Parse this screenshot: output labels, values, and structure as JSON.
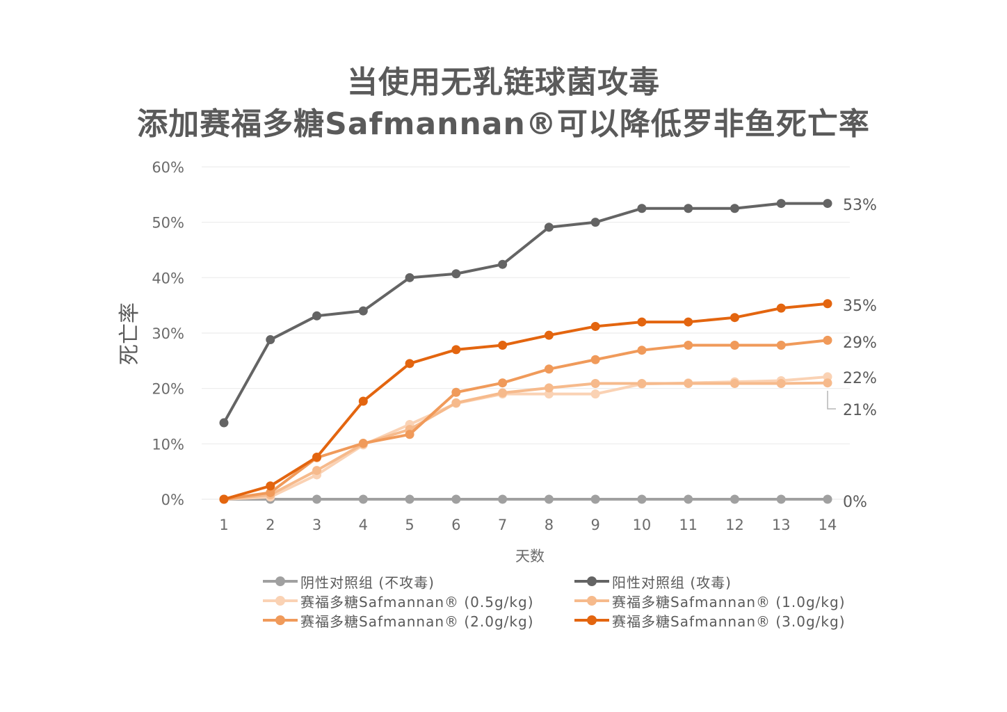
{
  "title_line1": "当使用无乳链球菌攻毒",
  "title_line2": "添加赛福多糖Safmannan®可以降低罗非鱼死亡率",
  "chart_data": {
    "type": "line",
    "xlabel": "天数",
    "ylabel": "死亡率",
    "x": [
      1,
      2,
      3,
      4,
      5,
      6,
      7,
      8,
      9,
      10,
      11,
      12,
      13,
      14
    ],
    "x_tick_labels": [
      "1",
      "2",
      "3",
      "4",
      "5",
      "6",
      "7",
      "8",
      "9",
      "10",
      "11",
      "12",
      "13",
      "14"
    ],
    "y_tick_labels": [
      "0%",
      "10%",
      "20%",
      "30%",
      "40%",
      "50%",
      "60%"
    ],
    "ylim": [
      0,
      60
    ],
    "grid": "horizontal",
    "legend_position": "bottom",
    "end_labels": [
      "53%",
      "35%",
      "29%",
      "22%",
      "21%",
      "0%"
    ],
    "series": [
      {
        "name": "阴性对照组 (不攻毒)",
        "color": "#a0a0a0",
        "values": [
          0,
          0,
          0,
          0,
          0,
          0,
          0,
          0,
          0,
          0,
          0,
          0,
          0,
          0
        ]
      },
      {
        "name": "阳性对照组 (攻毒)",
        "color": "#646464",
        "values": [
          13.8,
          28.8,
          33.1,
          34.0,
          40.0,
          40.7,
          42.4,
          49.1,
          50.0,
          52.5,
          52.5,
          52.5,
          53.4,
          53.4
        ]
      },
      {
        "name": "赛福多糖Safmannan® (0.5g/kg)",
        "color": "#fad2b4",
        "values": [
          0,
          0.4,
          4.4,
          9.8,
          13.5,
          17.3,
          19.0,
          19.0,
          19.0,
          20.8,
          21.0,
          21.2,
          21.4,
          22.1
        ]
      },
      {
        "name": "赛福多糖Safmannan® (1.0g/kg)",
        "color": "#f6ba8c",
        "values": [
          0,
          0.8,
          5.2,
          10.0,
          12.6,
          17.4,
          19.2,
          20.1,
          20.9,
          20.9,
          20.9,
          20.9,
          20.9,
          21.0
        ]
      },
      {
        "name": "赛福多糖Safmannan® (2.0g/kg)",
        "color": "#f09a5a",
        "values": [
          0,
          1.2,
          7.5,
          10.1,
          11.7,
          19.3,
          21.0,
          23.5,
          25.2,
          26.9,
          27.8,
          27.8,
          27.8,
          28.7
        ]
      },
      {
        "name": "赛福多糖Safmannan® (3.0g/kg)",
        "color": "#e3650f",
        "values": [
          0,
          2.4,
          7.6,
          17.7,
          24.5,
          27.0,
          27.8,
          29.6,
          31.2,
          32.0,
          32.0,
          32.8,
          34.5,
          35.3
        ]
      }
    ]
  }
}
